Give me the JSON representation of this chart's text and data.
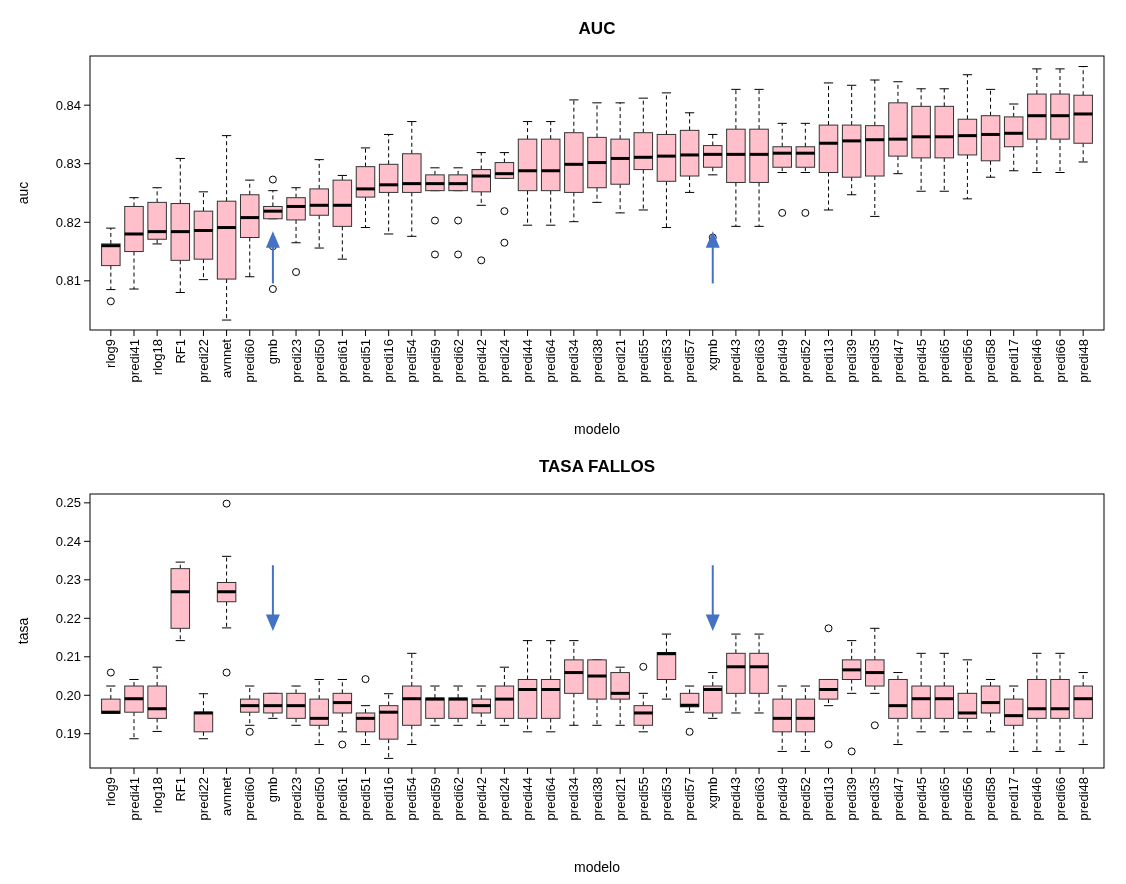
{
  "chart_data": [
    {
      "type": "box",
      "title": "AUC",
      "xlabel": "modelo",
      "ylabel": "auc",
      "color": "#ffc0cb",
      "categories": [
        "rlog9",
        "predi41",
        "rlog18",
        "RF1",
        "predi22",
        "avnnet",
        "predi60",
        "gmb",
        "predi23",
        "predi50",
        "predi61",
        "predi51",
        "predi16",
        "predi54",
        "predi59",
        "predi62",
        "predi42",
        "predi24",
        "predi44",
        "predi64",
        "predi34",
        "predi38",
        "predi21",
        "predi55",
        "predi53",
        "predi57",
        "xgmb",
        "predi43",
        "predi63",
        "predi49",
        "predi52",
        "predi13",
        "predi39",
        "predi35",
        "predi47",
        "predi45",
        "predi65",
        "predi56",
        "predi58",
        "predi17",
        "predi46",
        "predi66",
        "predi48"
      ],
      "ylim": [
        0.8016,
        0.8484
      ],
      "yticks": [
        0.81,
        0.82,
        0.83,
        0.84
      ],
      "boxes": [
        {
          "low": 0.8085,
          "q1": 0.8126,
          "median": 0.816,
          "q3": 0.8163,
          "high": 0.819,
          "outliers": [
            0.8065
          ]
        },
        {
          "low": 0.8086,
          "q1": 0.815,
          "median": 0.818,
          "q3": 0.8227,
          "high": 0.8242
        },
        {
          "low": 0.8163,
          "q1": 0.8171,
          "median": 0.8184,
          "q3": 0.8234,
          "high": 0.8259
        },
        {
          "low": 0.808,
          "q1": 0.8135,
          "median": 0.8184,
          "q3": 0.8232,
          "high": 0.8309
        },
        {
          "low": 0.8102,
          "q1": 0.8137,
          "median": 0.8186,
          "q3": 0.8219,
          "high": 0.8252
        },
        {
          "low": 0.8033,
          "q1": 0.8103,
          "median": 0.8191,
          "q3": 0.8236,
          "high": 0.8348
        },
        {
          "low": 0.8107,
          "q1": 0.8174,
          "median": 0.8208,
          "q3": 0.8247,
          "high": 0.8272
        },
        {
          "low": 0.8206,
          "q1": 0.8206,
          "median": 0.8219,
          "q3": 0.8227,
          "high": 0.8254,
          "outliers": [
            0.8273,
            0.8159,
            0.8086
          ]
        },
        {
          "low": 0.8165,
          "q1": 0.8204,
          "median": 0.8227,
          "q3": 0.8242,
          "high": 0.8259,
          "outliers": [
            0.8115
          ]
        },
        {
          "low": 0.8156,
          "q1": 0.8212,
          "median": 0.8229,
          "q3": 0.8257,
          "high": 0.8307
        },
        {
          "low": 0.8137,
          "q1": 0.8193,
          "median": 0.8229,
          "q3": 0.8272,
          "high": 0.828
        },
        {
          "low": 0.8191,
          "q1": 0.8243,
          "median": 0.8257,
          "q3": 0.8295,
          "high": 0.8327
        },
        {
          "low": 0.818,
          "q1": 0.8251,
          "median": 0.8264,
          "q3": 0.8299,
          "high": 0.835
        },
        {
          "low": 0.8176,
          "q1": 0.8251,
          "median": 0.8266,
          "q3": 0.8317,
          "high": 0.8372
        },
        {
          "low": 0.8254,
          "q1": 0.8254,
          "median": 0.8266,
          "q3": 0.8281,
          "high": 0.8293,
          "outliers": [
            0.8203,
            0.8145
          ]
        },
        {
          "low": 0.8254,
          "q1": 0.8254,
          "median": 0.8266,
          "q3": 0.8281,
          "high": 0.8293,
          "outliers": [
            0.8203,
            0.8145
          ]
        },
        {
          "low": 0.8229,
          "q1": 0.8252,
          "median": 0.8279,
          "q3": 0.829,
          "high": 0.8319,
          "outliers": [
            0.8135
          ]
        },
        {
          "low": 0.8275,
          "q1": 0.8275,
          "median": 0.8283,
          "q3": 0.8302,
          "high": 0.8319,
          "outliers": [
            0.8219,
            0.8165
          ]
        },
        {
          "low": 0.8195,
          "q1": 0.8254,
          "median": 0.8288,
          "q3": 0.8342,
          "high": 0.8372
        },
        {
          "low": 0.8195,
          "q1": 0.8254,
          "median": 0.8288,
          "q3": 0.8342,
          "high": 0.8372
        },
        {
          "low": 0.8201,
          "q1": 0.8251,
          "median": 0.8299,
          "q3": 0.8353,
          "high": 0.8409
        },
        {
          "low": 0.8234,
          "q1": 0.8259,
          "median": 0.8302,
          "q3": 0.8345,
          "high": 0.8404
        },
        {
          "low": 0.8216,
          "q1": 0.8265,
          "median": 0.8309,
          "q3": 0.8342,
          "high": 0.8404
        },
        {
          "low": 0.8221,
          "q1": 0.829,
          "median": 0.8311,
          "q3": 0.8353,
          "high": 0.8412
        },
        {
          "low": 0.8191,
          "q1": 0.827,
          "median": 0.8313,
          "q3": 0.835,
          "high": 0.8421
        },
        {
          "low": 0.8251,
          "q1": 0.8279,
          "median": 0.8315,
          "q3": 0.8357,
          "high": 0.8387
        },
        {
          "low": 0.8281,
          "q1": 0.8294,
          "median": 0.8316,
          "q3": 0.8331,
          "high": 0.835,
          "outliers": [
            0.8174
          ]
        },
        {
          "low": 0.8193,
          "q1": 0.8268,
          "median": 0.8316,
          "q3": 0.8359,
          "high": 0.8427
        },
        {
          "low": 0.8193,
          "q1": 0.8268,
          "median": 0.8316,
          "q3": 0.8359,
          "high": 0.8427
        },
        {
          "low": 0.8285,
          "q1": 0.8294,
          "median": 0.8318,
          "q3": 0.8329,
          "high": 0.8369,
          "outliers": [
            0.8216
          ]
        },
        {
          "low": 0.8285,
          "q1": 0.8294,
          "median": 0.8318,
          "q3": 0.8329,
          "high": 0.8369,
          "outliers": [
            0.8216
          ]
        },
        {
          "low": 0.8221,
          "q1": 0.8285,
          "median": 0.8335,
          "q3": 0.8366,
          "high": 0.8438
        },
        {
          "low": 0.8247,
          "q1": 0.8277,
          "median": 0.8339,
          "q3": 0.8366,
          "high": 0.8434
        },
        {
          "low": 0.821,
          "q1": 0.8279,
          "median": 0.8341,
          "q3": 0.8365,
          "high": 0.8443
        },
        {
          "low": 0.8283,
          "q1": 0.8313,
          "median": 0.8342,
          "q3": 0.8404,
          "high": 0.844
        },
        {
          "low": 0.8253,
          "q1": 0.831,
          "median": 0.8346,
          "q3": 0.8398,
          "high": 0.8428
        },
        {
          "low": 0.8253,
          "q1": 0.831,
          "median": 0.8346,
          "q3": 0.8398,
          "high": 0.8428
        },
        {
          "low": 0.824,
          "q1": 0.8315,
          "median": 0.8348,
          "q3": 0.8376,
          "high": 0.8452
        },
        {
          "low": 0.8277,
          "q1": 0.8305,
          "median": 0.835,
          "q3": 0.8382,
          "high": 0.8427
        },
        {
          "low": 0.8288,
          "q1": 0.8329,
          "median": 0.8352,
          "q3": 0.838,
          "high": 0.8402
        },
        {
          "low": 0.8285,
          "q1": 0.8342,
          "median": 0.8382,
          "q3": 0.8419,
          "high": 0.8462
        },
        {
          "low": 0.8285,
          "q1": 0.8342,
          "median": 0.8382,
          "q3": 0.8419,
          "high": 0.8462
        },
        {
          "low": 0.8303,
          "q1": 0.8335,
          "median": 0.8385,
          "q3": 0.8417,
          "high": 0.8466
        }
      ]
    },
    {
      "type": "box",
      "title": "TASA FALLOS",
      "xlabel": "modelo",
      "ylabel": "tasa",
      "color": "#ffc0cb",
      "categories": [
        "rlog9",
        "predi41",
        "rlog18",
        "RF1",
        "predi22",
        "avnnet",
        "predi60",
        "gmb",
        "predi23",
        "predi50",
        "predi61",
        "predi51",
        "predi16",
        "predi54",
        "predi59",
        "predi62",
        "predi42",
        "predi24",
        "predi44",
        "predi64",
        "predi34",
        "predi38",
        "predi21",
        "predi55",
        "predi53",
        "predi57",
        "xgmb",
        "predi43",
        "predi63",
        "predi49",
        "predi52",
        "predi13",
        "predi39",
        "predi35",
        "predi47",
        "predi45",
        "predi65",
        "predi56",
        "predi58",
        "predi17",
        "predi46",
        "predi66",
        "predi48"
      ],
      "ylim": [
        0.1811,
        0.2523
      ],
      "yticks": [
        0.19,
        {
          "value": 0.2,
          "label": "0.20"
        },
        0.21,
        0.22,
        0.23,
        0.24,
        0.25
      ],
      "boxes": [
        {
          "low": 0.1953,
          "q1": 0.1953,
          "median": 0.1956,
          "q3": 0.199,
          "high": 0.2024,
          "outliers": [
            0.2059
          ]
        },
        {
          "low": 0.1887,
          "q1": 0.1956,
          "median": 0.1991,
          "q3": 0.2024,
          "high": 0.2041
        },
        {
          "low": 0.1906,
          "q1": 0.194,
          "median": 0.1965,
          "q3": 0.2024,
          "high": 0.2073
        },
        {
          "low": 0.2142,
          "q1": 0.2174,
          "median": 0.2269,
          "q3": 0.2329,
          "high": 0.2346
        },
        {
          "low": 0.1887,
          "q1": 0.1905,
          "median": 0.1954,
          "q3": 0.1956,
          "high": 0.2004
        },
        {
          "low": 0.2175,
          "q1": 0.2243,
          "median": 0.2269,
          "q3": 0.2293,
          "high": 0.2361,
          "outliers": [
            0.2498,
            0.2059
          ]
        },
        {
          "low": 0.1922,
          "q1": 0.1956,
          "median": 0.1973,
          "q3": 0.199,
          "high": 0.2024,
          "outliers": [
            0.1905
          ]
        },
        {
          "low": 0.194,
          "q1": 0.1954,
          "median": 0.1973,
          "q3": 0.2005,
          "high": 0.2005
        },
        {
          "low": 0.1922,
          "q1": 0.194,
          "median": 0.1973,
          "q3": 0.2005,
          "high": 0.2024
        },
        {
          "low": 0.1872,
          "q1": 0.1922,
          "median": 0.194,
          "q3": 0.199,
          "high": 0.2041
        },
        {
          "low": 0.1905,
          "q1": 0.1954,
          "median": 0.1981,
          "q3": 0.2005,
          "high": 0.2041,
          "outliers": [
            0.1872
          ]
        },
        {
          "low": 0.1872,
          "q1": 0.1905,
          "median": 0.194,
          "q3": 0.1954,
          "high": 0.1973,
          "outliers": [
            0.2042
          ]
        },
        {
          "low": 0.1836,
          "q1": 0.1886,
          "median": 0.1956,
          "q3": 0.1973,
          "high": 0.2004
        },
        {
          "low": 0.1872,
          "q1": 0.1922,
          "median": 0.1991,
          "q3": 0.2024,
          "high": 0.2109
        },
        {
          "low": 0.1922,
          "q1": 0.194,
          "median": 0.199,
          "q3": 0.1993,
          "high": 0.2024
        },
        {
          "low": 0.1922,
          "q1": 0.194,
          "median": 0.199,
          "q3": 0.1993,
          "high": 0.2024
        },
        {
          "low": 0.1922,
          "q1": 0.1954,
          "median": 0.1973,
          "q3": 0.199,
          "high": 0.2024
        },
        {
          "low": 0.1922,
          "q1": 0.194,
          "median": 0.199,
          "q3": 0.2024,
          "high": 0.2073
        },
        {
          "low": 0.1905,
          "q1": 0.194,
          "median": 0.2015,
          "q3": 0.2041,
          "high": 0.2142
        },
        {
          "low": 0.1905,
          "q1": 0.194,
          "median": 0.2015,
          "q3": 0.2041,
          "high": 0.2142
        },
        {
          "low": 0.1922,
          "q1": 0.2005,
          "median": 0.2059,
          "q3": 0.2092,
          "high": 0.2142
        },
        {
          "low": 0.1922,
          "q1": 0.199,
          "median": 0.205,
          "q3": 0.2092,
          "high": 0.2092
        },
        {
          "low": 0.1922,
          "q1": 0.199,
          "median": 0.2005,
          "q3": 0.2059,
          "high": 0.2073
        },
        {
          "low": 0.1905,
          "q1": 0.1922,
          "median": 0.1954,
          "q3": 0.1973,
          "high": 0.2005,
          "outliers": [
            0.2074
          ]
        },
        {
          "low": 0.199,
          "q1": 0.2041,
          "median": 0.2108,
          "q3": 0.2111,
          "high": 0.2159
        },
        {
          "low": 0.1956,
          "q1": 0.197,
          "median": 0.1974,
          "q3": 0.2005,
          "high": 0.2024,
          "outliers": [
            0.1905
          ]
        },
        {
          "low": 0.194,
          "q1": 0.1954,
          "median": 0.2015,
          "q3": 0.2024,
          "high": 0.2059
        },
        {
          "low": 0.1954,
          "q1": 0.2005,
          "median": 0.2074,
          "q3": 0.2109,
          "high": 0.2159
        },
        {
          "low": 0.1954,
          "q1": 0.2005,
          "median": 0.2074,
          "q3": 0.2109,
          "high": 0.2159
        },
        {
          "low": 0.1854,
          "q1": 0.1905,
          "median": 0.194,
          "q3": 0.199,
          "high": 0.2024
        },
        {
          "low": 0.1854,
          "q1": 0.1905,
          "median": 0.194,
          "q3": 0.199,
          "high": 0.2024
        },
        {
          "low": 0.1973,
          "q1": 0.199,
          "median": 0.2015,
          "q3": 0.2041,
          "high": 0.2041,
          "outliers": [
            0.2174,
            0.1872
          ]
        },
        {
          "low": 0.2005,
          "q1": 0.2041,
          "median": 0.2066,
          "q3": 0.2092,
          "high": 0.2142,
          "outliers": [
            0.1854
          ]
        },
        {
          "low": 0.2005,
          "q1": 0.2024,
          "median": 0.2059,
          "q3": 0.2092,
          "high": 0.2174,
          "outliers": [
            0.1922
          ]
        },
        {
          "low": 0.1872,
          "q1": 0.194,
          "median": 0.1973,
          "q3": 0.2041,
          "high": 0.2059
        },
        {
          "low": 0.1905,
          "q1": 0.194,
          "median": 0.1991,
          "q3": 0.2024,
          "high": 0.2109
        },
        {
          "low": 0.1905,
          "q1": 0.194,
          "median": 0.1991,
          "q3": 0.2024,
          "high": 0.2109
        },
        {
          "low": 0.1905,
          "q1": 0.194,
          "median": 0.1954,
          "q3": 0.2005,
          "high": 0.2092
        },
        {
          "low": 0.1905,
          "q1": 0.1954,
          "median": 0.1981,
          "q3": 0.2024,
          "high": 0.2041
        },
        {
          "low": 0.1854,
          "q1": 0.1922,
          "median": 0.1947,
          "q3": 0.199,
          "high": 0.2024
        },
        {
          "low": 0.1854,
          "q1": 0.194,
          "median": 0.1965,
          "q3": 0.2041,
          "high": 0.2109
        },
        {
          "low": 0.1854,
          "q1": 0.194,
          "median": 0.1965,
          "q3": 0.2041,
          "high": 0.2109
        },
        {
          "low": 0.1872,
          "q1": 0.194,
          "median": 0.1991,
          "q3": 0.2024,
          "high": 0.2059
        }
      ]
    }
  ]
}
